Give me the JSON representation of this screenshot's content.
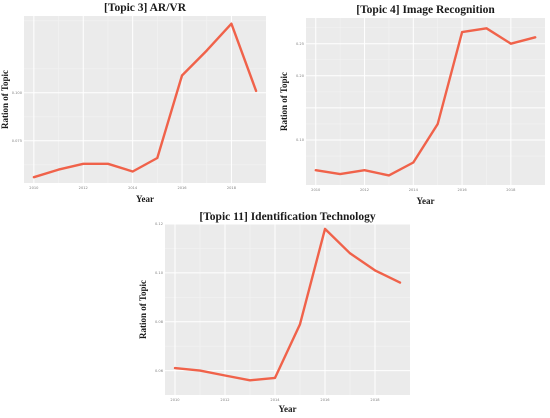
{
  "colors": {
    "panel_bg": "#ebebeb",
    "grid_major": "#ffffff",
    "grid_minor": "#f3f3f3",
    "line": "#f0624a"
  },
  "chart_data": [
    {
      "type": "line",
      "title": "[Topic 3] AR/VR",
      "xlabel": "Year",
      "ylabel": "Ration of Topic",
      "x": [
        2010,
        2011,
        2012,
        2013,
        2014,
        2015,
        2016,
        2017,
        2018,
        2019
      ],
      "xticks": [
        2010,
        2012,
        2014,
        2016,
        2018
      ],
      "xtick_labels": [
        "2010",
        "2012",
        "2014",
        "2016",
        "2018"
      ],
      "series": [
        {
          "values": [
            0.056,
            0.06,
            0.063,
            0.063,
            0.059,
            0.066,
            0.109,
            0.122,
            0.136,
            0.101
          ]
        }
      ],
      "xlim": [
        2009.6,
        2019.4
      ],
      "ylim": [
        0.053,
        0.14
      ],
      "yticks": [
        0.075,
        0.1
      ],
      "ytick_labels": [
        "0.075",
        "0.100"
      ],
      "grid": true
    },
    {
      "type": "line",
      "title": "[Topic 4] Image Recognition",
      "xlabel": "Year",
      "ylabel": "Ration of Topic",
      "x": [
        2010,
        2011,
        2012,
        2013,
        2014,
        2015,
        2016,
        2017,
        2018,
        2019
      ],
      "xticks": [
        2010,
        2012,
        2014,
        2016,
        2018
      ],
      "xtick_labels": [
        "2010",
        "2012",
        "2014",
        "2016",
        "2018"
      ],
      "series": [
        {
          "values": [
            0.053,
            0.047,
            0.053,
            0.045,
            0.065,
            0.125,
            0.268,
            0.274,
            0.25,
            0.26
          ]
        }
      ],
      "xlim": [
        2009.6,
        2019.4
      ],
      "ylim": [
        0.03,
        0.29
      ],
      "yticks": [
        0.1,
        0.15,
        0.2,
        0.25
      ],
      "ytick_labels": [
        "0.10",
        "",
        "0.20",
        "0.25"
      ],
      "grid": true
    },
    {
      "type": "line",
      "title": "[Topic 11] Identification Technology",
      "xlabel": "Year",
      "ylabel": "Ration of Topic",
      "x": [
        2010,
        2011,
        2012,
        2013,
        2014,
        2015,
        2016,
        2017,
        2018,
        2019
      ],
      "xticks": [
        2010,
        2012,
        2014,
        2016,
        2018
      ],
      "xtick_labels": [
        "2010",
        "2012",
        "2014",
        "2016",
        "2018"
      ],
      "series": [
        {
          "values": [
            0.061,
            0.06,
            0.058,
            0.056,
            0.057,
            0.079,
            0.118,
            0.108,
            0.101,
            0.096
          ]
        }
      ],
      "xlim": [
        2009.6,
        2019.4
      ],
      "ylim": [
        0.05,
        0.12
      ],
      "yticks": [
        0.06,
        0.08,
        0.1,
        0.12
      ],
      "ytick_labels": [
        "0.06",
        "0.08",
        "0.10",
        "0.12"
      ],
      "grid": true
    }
  ]
}
